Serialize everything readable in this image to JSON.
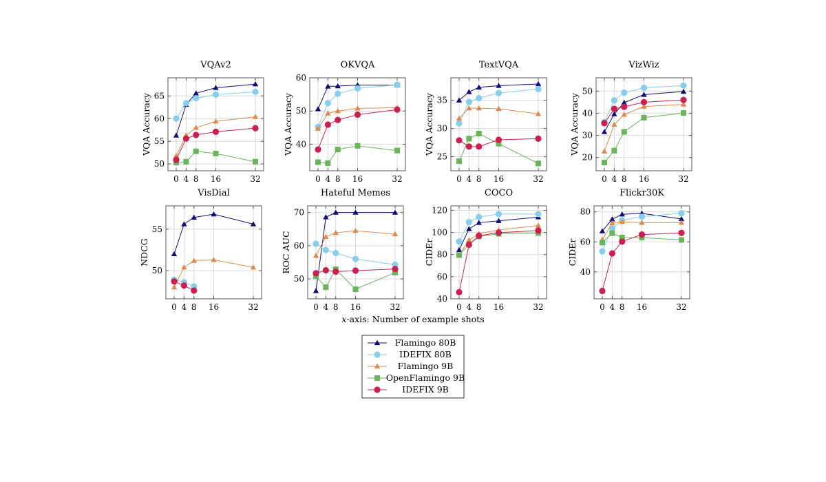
{
  "x_caption": {
    "italic": "x",
    "rest": "-axis: Number of example shots"
  },
  "legend": {
    "position": "bottom-center",
    "entries": [
      {
        "name": "Flamingo 80B",
        "color": "#0d0d7a",
        "marker": "triangle"
      },
      {
        "name": "IDEFIX 80B",
        "color": "#87cdee",
        "marker": "circle"
      },
      {
        "name": "Flamingo 9B",
        "color": "#e0894a",
        "marker": "triangle"
      },
      {
        "name": "OpenFlamingo 9B",
        "color": "#69b55a",
        "marker": "square"
      },
      {
        "name": "IDEFIX 9B",
        "color": "#cc1f4f",
        "marker": "circle"
      }
    ]
  },
  "chart_data": [
    {
      "type": "line",
      "title": "VQAv2",
      "xlabel": "",
      "ylabel": "VQA Accuracy",
      "x": [
        0,
        4,
        8,
        16,
        32
      ],
      "xticks": [
        "0",
        "4",
        "8",
        "16",
        "32"
      ],
      "yticks": [
        50,
        55,
        60,
        65
      ],
      "ylim": [
        48.5,
        69
      ],
      "grid": true,
      "series": [
        {
          "name": "Flamingo 80B",
          "values": [
            56.3,
            63.1,
            65.6,
            66.8,
            67.6
          ]
        },
        {
          "name": "IDEFIX 80B",
          "values": [
            60.0,
            63.4,
            64.5,
            65.3,
            65.9
          ]
        },
        {
          "name": "Flamingo 9B",
          "values": [
            51.8,
            56.3,
            58.0,
            59.4,
            60.4
          ]
        },
        {
          "name": "OpenFlamingo 9B",
          "values": [
            50.3,
            50.5,
            52.8,
            52.3,
            50.5
          ]
        },
        {
          "name": "IDEFIX 9B",
          "values": [
            50.9,
            55.6,
            56.4,
            57.1,
            57.9
          ]
        }
      ]
    },
    {
      "type": "line",
      "title": "OKVQA",
      "xlabel": "",
      "ylabel": "VQA Accuracy",
      "x": [
        0,
        4,
        8,
        16,
        32
      ],
      "xticks": [
        "0",
        "4",
        "8",
        "16",
        "32"
      ],
      "yticks": [
        40,
        50,
        60
      ],
      "ylim": [
        32,
        60
      ],
      "grid": true,
      "series": [
        {
          "name": "Flamingo 80B",
          "values": [
            50.6,
            57.4,
            57.5,
            57.8,
            57.8
          ]
        },
        {
          "name": "IDEFIX 80B",
          "values": [
            45.2,
            52.4,
            55.2,
            56.8,
            57.9
          ]
        },
        {
          "name": "Flamingo 9B",
          "values": [
            44.7,
            49.3,
            50.0,
            50.8,
            51.0
          ]
        },
        {
          "name": "OpenFlamingo 9B",
          "values": [
            34.6,
            34.3,
            38.4,
            39.5,
            38.1
          ]
        },
        {
          "name": "IDEFIX 9B",
          "values": [
            38.4,
            45.9,
            47.3,
            48.9,
            50.4
          ]
        }
      ]
    },
    {
      "type": "line",
      "title": "TextVQA",
      "xlabel": "",
      "ylabel": "VQA Accuracy",
      "x": [
        0,
        4,
        8,
        16,
        32
      ],
      "xticks": [
        "0",
        "4",
        "8",
        "16",
        "32"
      ],
      "yticks": [
        25,
        30,
        35
      ],
      "ylim": [
        22.5,
        39
      ],
      "grid": true,
      "series": [
        {
          "name": "Flamingo 80B",
          "values": [
            35.0,
            36.5,
            37.3,
            37.6,
            37.9
          ]
        },
        {
          "name": "IDEFIX 80B",
          "values": [
            30.9,
            34.7,
            35.4,
            36.3,
            37.0
          ]
        },
        {
          "name": "Flamingo 9B",
          "values": [
            31.8,
            33.6,
            33.6,
            33.5,
            32.6
          ]
        },
        {
          "name": "OpenFlamingo 9B",
          "values": [
            24.2,
            28.2,
            29.1,
            27.3,
            23.8
          ]
        },
        {
          "name": "IDEFIX 9B",
          "values": [
            27.9,
            26.8,
            26.8,
            28.0,
            28.2
          ]
        }
      ]
    },
    {
      "type": "line",
      "title": "VizWiz",
      "xlabel": "",
      "ylabel": "VQA Accuracy",
      "x": [
        0,
        4,
        8,
        16,
        32
      ],
      "xticks": [
        "0",
        "4",
        "8",
        "16",
        "32"
      ],
      "yticks": [
        20,
        30,
        40,
        50
      ],
      "ylim": [
        14,
        56
      ],
      "grid": true,
      "series": [
        {
          "name": "Flamingo 80B",
          "values": [
            31.6,
            39.6,
            44.8,
            48.4,
            49.8
          ]
        },
        {
          "name": "IDEFIX 80B",
          "values": [
            36.0,
            45.8,
            49.3,
            51.5,
            52.5
          ]
        },
        {
          "name": "Flamingo 9B",
          "values": [
            22.8,
            34.9,
            39.4,
            43.0,
            44.0
          ]
        },
        {
          "name": "OpenFlamingo 9B",
          "values": [
            17.7,
            23.1,
            31.6,
            38.0,
            40.1
          ]
        },
        {
          "name": "IDEFIX 9B",
          "values": [
            35.5,
            42.0,
            42.9,
            45.0,
            46.0
          ]
        }
      ]
    },
    {
      "type": "line",
      "title": "VisDial",
      "xlabel": "",
      "ylabel": "NDCG",
      "x": [
        0,
        4,
        8,
        16,
        32
      ],
      "xticks": [
        "0",
        "4",
        "8",
        "16",
        "32"
      ],
      "yticks": [
        50,
        55
      ],
      "ylim": [
        46.6,
        57.8
      ],
      "grid": true,
      "series": [
        {
          "name": "Flamingo 80B",
          "values": [
            52.0,
            55.6,
            56.4,
            56.8,
            55.6
          ]
        },
        {
          "name": "IDEFIX 80B",
          "values": [
            48.9,
            48.6,
            48.1
          ]
        },
        {
          "name": "Flamingo 9B",
          "values": [
            48.0,
            50.4,
            51.2,
            51.3,
            50.4
          ]
        },
        {
          "name": "OpenFlamingo 9B",
          "values": []
        },
        {
          "name": "IDEFIX 9B",
          "values": [
            48.7,
            48.2,
            47.6
          ]
        }
      ]
    },
    {
      "type": "line",
      "title": "Hateful Memes",
      "xlabel": "",
      "ylabel": "ROC AUC",
      "x": [
        0,
        4,
        8,
        16,
        32
      ],
      "xticks": [
        "0",
        "4",
        "8",
        "16",
        "32"
      ],
      "yticks": [
        50,
        60,
        70
      ],
      "ylim": [
        44,
        72
      ],
      "grid": true,
      "series": [
        {
          "name": "Flamingo 80B",
          "values": [
            46.4,
            68.6,
            70.0,
            70.0,
            70.0
          ]
        },
        {
          "name": "IDEFIX 80B",
          "values": [
            60.6,
            58.7,
            57.8,
            56.0,
            54.3
          ]
        },
        {
          "name": "Flamingo 9B",
          "values": [
            57.0,
            62.7,
            63.9,
            64.5,
            63.5
          ]
        },
        {
          "name": "OpenFlamingo 9B",
          "values": [
            50.8,
            47.5,
            52.9,
            46.9,
            51.9
          ]
        },
        {
          "name": "IDEFIX 9B",
          "values": [
            51.7,
            52.6,
            52.2,
            52.5,
            53.0
          ]
        }
      ]
    },
    {
      "type": "line",
      "title": "COCO",
      "xlabel": "",
      "ylabel": "CIDEr",
      "x": [
        0,
        4,
        8,
        16,
        32
      ],
      "xticks": [
        "0",
        "4",
        "8",
        "16",
        "32"
      ],
      "yticks": [
        40,
        60,
        80,
        100,
        120
      ],
      "ylim": [
        40,
        124
      ],
      "grid": true,
      "series": [
        {
          "name": "Flamingo 80B",
          "values": [
            84.3,
            103.2,
            108.8,
            110.5,
            113.8
          ]
        },
        {
          "name": "IDEFIX 80B",
          "values": [
            91.8,
            109.3,
            114.0,
            116.6,
            116.6
          ]
        },
        {
          "name": "Flamingo 9B",
          "values": [
            79.4,
            93.1,
            99.0,
            102.2,
            106.3
          ]
        },
        {
          "name": "OpenFlamingo 9B",
          "values": [
            79.5,
            89.0,
            96.3,
            98.8,
            99.5
          ]
        },
        {
          "name": "IDEFIX 9B",
          "values": [
            46.0,
            88.9,
            97.0,
            99.8,
            101.7
          ]
        }
      ]
    },
    {
      "type": "line",
      "title": "Flickr30K",
      "xlabel": "",
      "ylabel": "CIDEr",
      "x": [
        0,
        4,
        8,
        16,
        32
      ],
      "xticks": [
        "0",
        "4",
        "8",
        "16",
        "32"
      ],
      "yticks": [
        40,
        60,
        80
      ],
      "ylim": [
        22,
        84
      ],
      "grid": true,
      "series": [
        {
          "name": "Flamingo 80B",
          "values": [
            67.2,
            75.1,
            78.4,
            79.0,
            75.3
          ]
        },
        {
          "name": "IDEFIX 80B",
          "values": [
            53.7,
            69.0,
            74.4,
            76.8,
            79.1
          ]
        },
        {
          "name": "Flamingo 9B",
          "values": [
            61.5,
            72.6,
            73.4,
            72.8,
            72.8
          ]
        },
        {
          "name": "OpenFlamingo 9B",
          "values": [
            59.5,
            65.8,
            62.9,
            62.8,
            61.3
          ]
        },
        {
          "name": "IDEFIX 9B",
          "values": [
            27.3,
            52.3,
            60.2,
            64.9,
            66.0
          ]
        }
      ]
    }
  ]
}
